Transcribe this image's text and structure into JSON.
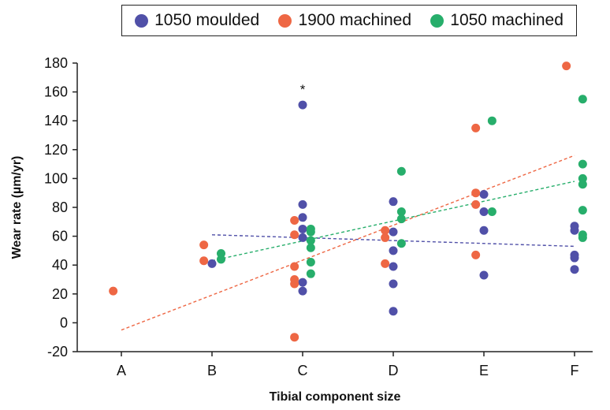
{
  "chart_data": {
    "type": "scatter",
    "xlabel": "Tibial component size",
    "ylabel": "Wear rate (µm/yr)",
    "categories": [
      "A",
      "B",
      "C",
      "D",
      "E",
      "F"
    ],
    "ylim": [
      -20,
      180
    ],
    "yticks": [
      -20,
      0,
      20,
      40,
      60,
      80,
      100,
      120,
      140,
      160,
      180
    ],
    "grid": false,
    "legend_position": "top",
    "series": [
      {
        "name": "1050 moulded",
        "color": "#5050a8",
        "points": [
          {
            "x": "B",
            "y": 41,
            "j": 0
          },
          {
            "x": "C",
            "y": 151,
            "j": 0
          },
          {
            "x": "C",
            "y": 82,
            "j": 0
          },
          {
            "x": "C",
            "y": 73,
            "j": 0
          },
          {
            "x": "C",
            "y": 65,
            "j": 0
          },
          {
            "x": "C",
            "y": 59,
            "j": 0
          },
          {
            "x": "C",
            "y": 28,
            "j": 0
          },
          {
            "x": "C",
            "y": 22,
            "j": 0
          },
          {
            "x": "D",
            "y": 84,
            "j": 0
          },
          {
            "x": "D",
            "y": 63,
            "j": 0
          },
          {
            "x": "D",
            "y": 50,
            "j": 0
          },
          {
            "x": "D",
            "y": 39,
            "j": 0
          },
          {
            "x": "D",
            "y": 27,
            "j": 0
          },
          {
            "x": "D",
            "y": 8,
            "j": 0
          },
          {
            "x": "E",
            "y": 89,
            "j": 0
          },
          {
            "x": "E",
            "y": 77,
            "j": 0
          },
          {
            "x": "E",
            "y": 64,
            "j": 0
          },
          {
            "x": "E",
            "y": 33,
            "j": 0
          },
          {
            "x": "F",
            "y": 67,
            "j": 0
          },
          {
            "x": "F",
            "y": 64,
            "j": 0
          },
          {
            "x": "F",
            "y": 47,
            "j": 0
          },
          {
            "x": "F",
            "y": 45,
            "j": 0
          },
          {
            "x": "F",
            "y": 37,
            "j": 0
          }
        ]
      },
      {
        "name": "1900 machined",
        "color": "#ee6744",
        "points": [
          {
            "x": "A",
            "y": 22,
            "j": -0.09
          },
          {
            "x": "B",
            "y": 54,
            "j": -0.09
          },
          {
            "x": "B",
            "y": 43,
            "j": -0.09
          },
          {
            "x": "C",
            "y": 71,
            "j": -0.09
          },
          {
            "x": "C",
            "y": 61,
            "j": -0.09
          },
          {
            "x": "C",
            "y": 39,
            "j": -0.09
          },
          {
            "x": "C",
            "y": 30,
            "j": -0.09
          },
          {
            "x": "C",
            "y": 27,
            "j": -0.09
          },
          {
            "x": "C",
            "y": -10,
            "j": -0.09
          },
          {
            "x": "D",
            "y": 64,
            "j": -0.09
          },
          {
            "x": "D",
            "y": 59,
            "j": -0.09
          },
          {
            "x": "D",
            "y": 41,
            "j": -0.09
          },
          {
            "x": "E",
            "y": 135,
            "j": -0.09
          },
          {
            "x": "E",
            "y": 90,
            "j": -0.09
          },
          {
            "x": "E",
            "y": 82,
            "j": -0.09
          },
          {
            "x": "E",
            "y": 47,
            "j": -0.09
          },
          {
            "x": "F",
            "y": 178,
            "j": -0.09
          }
        ]
      },
      {
        "name": "1050 machined",
        "color": "#27ae6b",
        "points": [
          {
            "x": "B",
            "y": 48,
            "j": 0.1
          },
          {
            "x": "B",
            "y": 44,
            "j": 0.1
          },
          {
            "x": "C",
            "y": 65,
            "j": 0.09
          },
          {
            "x": "C",
            "y": 63,
            "j": 0.09
          },
          {
            "x": "C",
            "y": 57,
            "j": 0.09
          },
          {
            "x": "C",
            "y": 52,
            "j": 0.09
          },
          {
            "x": "C",
            "y": 42,
            "j": 0.09
          },
          {
            "x": "C",
            "y": 34,
            "j": 0.09
          },
          {
            "x": "D",
            "y": 105,
            "j": 0.09
          },
          {
            "x": "D",
            "y": 77,
            "j": 0.09
          },
          {
            "x": "D",
            "y": 72,
            "j": 0.09
          },
          {
            "x": "D",
            "y": 55,
            "j": 0.09
          },
          {
            "x": "E",
            "y": 140,
            "j": 0.09
          },
          {
            "x": "E",
            "y": 77,
            "j": 0.09
          },
          {
            "x": "F",
            "y": 155,
            "j": 0.09
          },
          {
            "x": "F",
            "y": 110,
            "j": 0.09
          },
          {
            "x": "F",
            "y": 100,
            "j": 0.09
          },
          {
            "x": "F",
            "y": 96,
            "j": 0.09
          },
          {
            "x": "F",
            "y": 78,
            "j": 0.09
          },
          {
            "x": "F",
            "y": 61,
            "j": 0.09
          },
          {
            "x": "F",
            "y": 59,
            "j": 0.09
          }
        ]
      }
    ],
    "trendlines": [
      {
        "series": "1050 moulded",
        "from": {
          "x": "B",
          "y": 61
        },
        "to": {
          "x": "F",
          "y": 53
        },
        "style": "dashed"
      },
      {
        "series": "1900 machined",
        "from": {
          "x": "A",
          "y": -5
        },
        "to": {
          "x": "F",
          "y": 116
        },
        "style": "dashed"
      },
      {
        "series": "1050 machined",
        "from": {
          "x": "B",
          "y": 43
        },
        "to": {
          "x": "F",
          "y": 98
        },
        "style": "dashed"
      }
    ],
    "annotations": [
      {
        "text": "*",
        "x": "C",
        "y": 163
      }
    ]
  }
}
